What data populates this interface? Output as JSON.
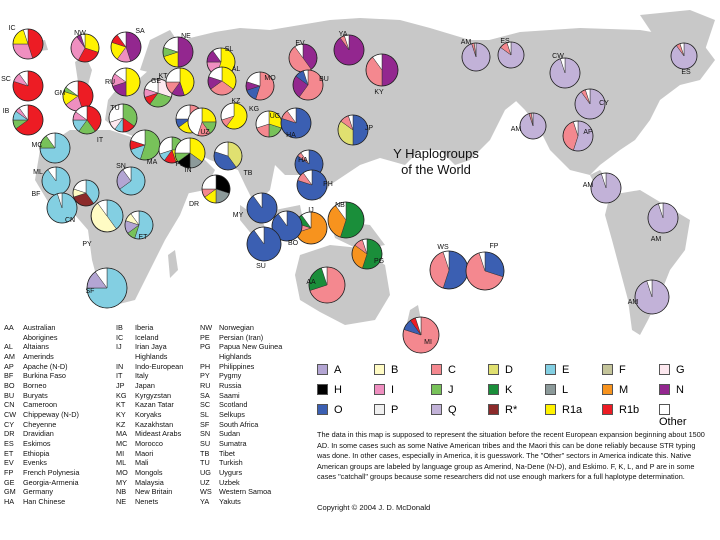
{
  "title_line1": "Y Haplogroups",
  "title_line2": "of the World",
  "colors": {
    "A": "#b3a5d3",
    "B": "#fffbc4",
    "C": "#f4888f",
    "D": "#e0e070",
    "E": "#83cfe2",
    "F": "#c4c49a",
    "G": "#fde8ef",
    "H": "#000000",
    "I": "#ef8fc0",
    "J": "#78c25a",
    "K": "#1a8e3a",
    "L": "#8c9a9a",
    "M": "#f7931e",
    "N": "#93278f",
    "O": "#3b5fb2",
    "P": "#f0f0f0",
    "Q": "#c2b2d8",
    "Rstar": "#8b2a2a",
    "R1a": "#fff200",
    "R1b": "#ed1c24",
    "Other": "#ffffff"
  },
  "legend": [
    {
      "key": "A",
      "label": "A"
    },
    {
      "key": "B",
      "label": "B"
    },
    {
      "key": "C",
      "label": "C"
    },
    {
      "key": "D",
      "label": "D"
    },
    {
      "key": "E",
      "label": "E"
    },
    {
      "key": "F",
      "label": "F"
    },
    {
      "key": "G",
      "label": "G"
    },
    {
      "key": "H",
      "label": "H"
    },
    {
      "key": "I",
      "label": "I"
    },
    {
      "key": "J",
      "label": "J"
    },
    {
      "key": "K",
      "label": "K"
    },
    {
      "key": "L",
      "label": "L"
    },
    {
      "key": "M",
      "label": "M"
    },
    {
      "key": "N",
      "label": "N"
    },
    {
      "key": "O",
      "label": "O"
    },
    {
      "key": "P",
      "label": "P"
    },
    {
      "key": "Q",
      "label": "Q"
    },
    {
      "key": "Rstar",
      "label": "R*"
    },
    {
      "key": "R1a",
      "label": "R1a"
    },
    {
      "key": "R1b",
      "label": "R1b"
    },
    {
      "key": "Other",
      "label": "Other"
    }
  ],
  "populations": [
    {
      "code": "IC",
      "slices": [
        [
          "R1b",
          45
        ],
        [
          "I",
          30
        ],
        [
          "R1a",
          20
        ],
        [
          "Other",
          5
        ]
      ]
    },
    {
      "code": "NW",
      "slices": [
        [
          "R1a",
          30
        ],
        [
          "R1b",
          28
        ],
        [
          "I",
          32
        ],
        [
          "N",
          5
        ],
        [
          "Other",
          5
        ]
      ]
    },
    {
      "code": "SA",
      "slices": [
        [
          "N",
          45
        ],
        [
          "I",
          15
        ],
        [
          "R1a",
          20
        ],
        [
          "R1b",
          10
        ],
        [
          "Other",
          10
        ]
      ]
    },
    {
      "code": "NE",
      "slices": [
        [
          "N",
          50
        ],
        [
          "R1a",
          20
        ],
        [
          "J",
          10
        ],
        [
          "Other",
          20
        ]
      ]
    },
    {
      "code": "SL",
      "slices": [
        [
          "R1a",
          55
        ],
        [
          "I",
          20
        ],
        [
          "N",
          15
        ],
        [
          "Other",
          10
        ]
      ]
    },
    {
      "code": "EV",
      "slices": [
        [
          "N",
          40
        ],
        [
          "C",
          50
        ],
        [
          "Other",
          10
        ]
      ]
    },
    {
      "code": "YA",
      "slices": [
        [
          "N",
          90
        ],
        [
          "C",
          5
        ],
        [
          "Other",
          5
        ]
      ]
    },
    {
      "code": "AM",
      "slices": [
        [
          "Q",
          95
        ],
        [
          "C",
          3
        ],
        [
          "Other",
          2
        ]
      ]
    },
    {
      "code": "ES",
      "slices": [
        [
          "Q",
          85
        ],
        [
          "C",
          10
        ],
        [
          "Other",
          5
        ]
      ]
    },
    {
      "code": "ES",
      "slices": [
        [
          "Q",
          90
        ],
        [
          "C",
          5
        ],
        [
          "Other",
          5
        ]
      ]
    },
    {
      "code": "SC",
      "slices": [
        [
          "R1b",
          80
        ],
        [
          "I",
          10
        ],
        [
          "Other",
          10
        ]
      ]
    },
    {
      "code": "GM",
      "slices": [
        [
          "R1b",
          45
        ],
        [
          "I",
          20
        ],
        [
          "R1a",
          15
        ],
        [
          "J",
          5
        ],
        [
          "Other",
          15
        ]
      ]
    },
    {
      "code": "RU",
      "slices": [
        [
          "R1a",
          50
        ],
        [
          "N",
          20
        ],
        [
          "I",
          15
        ],
        [
          "Other",
          15
        ]
      ]
    },
    {
      "code": "GE",
      "slices": [
        [
          "G",
          30
        ],
        [
          "J",
          30
        ],
        [
          "R1b",
          10
        ],
        [
          "I",
          10
        ],
        [
          "Other",
          20
        ]
      ]
    },
    {
      "code": "KT",
      "slices": [
        [
          "R1a",
          45
        ],
        [
          "N",
          15
        ],
        [
          "C",
          15
        ],
        [
          "Other",
          25
        ]
      ]
    },
    {
      "code": "AL",
      "slices": [
        [
          "R1a",
          35
        ],
        [
          "C",
          30
        ],
        [
          "N",
          15
        ],
        [
          "Other",
          20
        ]
      ]
    },
    {
      "code": "MO",
      "slices": [
        [
          "C",
          55
        ],
        [
          "O",
          15
        ],
        [
          "N",
          10
        ],
        [
          "Other",
          20
        ]
      ]
    },
    {
      "code": "BU",
      "slices": [
        [
          "C",
          60
        ],
        [
          "N",
          25
        ],
        [
          "O",
          10
        ],
        [
          "Other",
          5
        ]
      ]
    },
    {
      "code": "KY",
      "slices": [
        [
          "N",
          50
        ],
        [
          "C",
          40
        ],
        [
          "Other",
          10
        ]
      ]
    },
    {
      "code": "CW",
      "slices": [
        [
          "Q",
          95
        ],
        [
          "Other",
          5
        ]
      ]
    },
    {
      "code": "IB",
      "slices": [
        [
          "R1b",
          65
        ],
        [
          "J",
          10
        ],
        [
          "E",
          10
        ],
        [
          "I",
          5
        ],
        [
          "Other",
          10
        ]
      ]
    },
    {
      "code": "IT",
      "slices": [
        [
          "R1b",
          40
        ],
        [
          "J",
          20
        ],
        [
          "E",
          15
        ],
        [
          "I",
          10
        ],
        [
          "Other",
          15
        ]
      ]
    },
    {
      "code": "TU",
      "slices": [
        [
          "J",
          35
        ],
        [
          "R1b",
          15
        ],
        [
          "E",
          10
        ],
        [
          "G",
          10
        ],
        [
          "Other",
          30
        ]
      ]
    },
    {
      "code": "KZ",
      "slices": [
        [
          "C",
          40
        ],
        [
          "R1a",
          25
        ],
        [
          "O",
          10
        ],
        [
          "Other",
          25
        ]
      ]
    },
    {
      "code": "KG",
      "slices": [
        [
          "R1a",
          60
        ],
        [
          "C",
          10
        ],
        [
          "Other",
          30
        ]
      ]
    },
    {
      "code": "UG",
      "slices": [
        [
          "R1a",
          30
        ],
        [
          "J",
          20
        ],
        [
          "C",
          20
        ],
        [
          "Other",
          30
        ]
      ]
    },
    {
      "code": "JP",
      "slices": [
        [
          "O",
          50
        ],
        [
          "D",
          35
        ],
        [
          "C",
          10
        ],
        [
          "Other",
          5
        ]
      ]
    },
    {
      "code": "CY",
      "slices": [
        [
          "Q",
          90
        ],
        [
          "C",
          5
        ],
        [
          "Other",
          5
        ]
      ]
    },
    {
      "code": "MC",
      "slices": [
        [
          "E",
          75
        ],
        [
          "J",
          15
        ],
        [
          "Other",
          10
        ]
      ]
    },
    {
      "code": "MA",
      "slices": [
        [
          "J",
          55
        ],
        [
          "E",
          15
        ],
        [
          "R1b",
          10
        ],
        [
          "Other",
          20
        ]
      ]
    },
    {
      "code": "PE",
      "slices": [
        [
          "J",
          25
        ],
        [
          "R1a",
          20
        ],
        [
          "R1b",
          15
        ],
        [
          "E",
          10
        ],
        [
          "Other",
          30
        ]
      ]
    },
    {
      "code": "UZ",
      "slices": [
        [
          "R1a",
          25
        ],
        [
          "J",
          15
        ],
        [
          "C",
          15
        ],
        [
          "Other",
          45
        ]
      ]
    },
    {
      "code": "HA",
      "slices": [
        [
          "O",
          80
        ],
        [
          "C",
          10
        ],
        [
          "Other",
          10
        ]
      ]
    },
    {
      "code": "AM",
      "slices": [
        [
          "Q",
          95
        ],
        [
          "C",
          3
        ],
        [
          "Other",
          2
        ]
      ]
    },
    {
      "code": "AP",
      "slices": [
        [
          "Q",
          55
        ],
        [
          "C",
          40
        ],
        [
          "Other",
          5
        ]
      ]
    },
    {
      "code": "SN",
      "slices": [
        [
          "E",
          65
        ],
        [
          "A",
          25
        ],
        [
          "Other",
          10
        ]
      ]
    },
    {
      "code": "IN",
      "slices": [
        [
          "R1a",
          35
        ],
        [
          "L",
          15
        ],
        [
          "H",
          15
        ],
        [
          "J",
          10
        ],
        [
          "Other",
          25
        ]
      ]
    },
    {
      "code": "TB",
      "slices": [
        [
          "D",
          40
        ],
        [
          "O",
          40
        ],
        [
          "Other",
          20
        ]
      ]
    },
    {
      "code": "HA",
      "slices": [
        [
          "O",
          85
        ],
        [
          "C",
          5
        ],
        [
          "Other",
          10
        ]
      ]
    },
    {
      "code": "PH",
      "slices": [
        [
          "O",
          80
        ],
        [
          "C",
          10
        ],
        [
          "Other",
          10
        ]
      ]
    },
    {
      "code": "ML",
      "slices": [
        [
          "E",
          90
        ],
        [
          "Other",
          10
        ]
      ]
    },
    {
      "code": "DR",
      "slices": [
        [
          "H",
          30
        ],
        [
          "L",
          20
        ],
        [
          "R1a",
          15
        ],
        [
          "C",
          10
        ],
        [
          "Other",
          25
        ]
      ]
    },
    {
      "code": "MY",
      "slices": [
        [
          "O",
          90
        ],
        [
          "Other",
          10
        ]
      ]
    },
    {
      "code": "IJ",
      "slices": [
        [
          "M",
          70
        ],
        [
          "C",
          10
        ],
        [
          "K",
          10
        ],
        [
          "Other",
          10
        ]
      ]
    },
    {
      "code": "NB",
      "slices": [
        [
          "K",
          55
        ],
        [
          "M",
          35
        ],
        [
          "Other",
          10
        ]
      ]
    },
    {
      "code": "BF",
      "slices": [
        [
          "E",
          95
        ],
        [
          "Other",
          5
        ]
      ]
    },
    {
      "code": "CN",
      "slices": [
        [
          "E",
          40
        ],
        [
          "Rstar",
          30
        ],
        [
          "B",
          10
        ],
        [
          "Other",
          20
        ]
      ]
    },
    {
      "code": "PY",
      "slices": [
        [
          "E",
          40
        ],
        [
          "B",
          50
        ],
        [
          "Other",
          10
        ]
      ]
    },
    {
      "code": "ET",
      "slices": [
        [
          "E",
          55
        ],
        [
          "J",
          10
        ],
        [
          "A",
          15
        ],
        [
          "B",
          10
        ],
        [
          "Other",
          10
        ]
      ]
    },
    {
      "code": "BO",
      "slices": [
        [
          "O",
          90
        ],
        [
          "Other",
          10
        ]
      ]
    },
    {
      "code": "SU",
      "slices": [
        [
          "O",
          90
        ],
        [
          "Other",
          10
        ]
      ]
    },
    {
      "code": "PG",
      "slices": [
        [
          "K",
          55
        ],
        [
          "M",
          30
        ],
        [
          "C",
          10
        ],
        [
          "Other",
          5
        ]
      ]
    },
    {
      "code": "WS",
      "slices": [
        [
          "O",
          55
        ],
        [
          "C",
          40
        ],
        [
          "Other",
          5
        ]
      ]
    },
    {
      "code": "FP",
      "slices": [
        [
          "O",
          30
        ],
        [
          "C",
          65
        ],
        [
          "Other",
          5
        ]
      ]
    },
    {
      "code": "AM",
      "slices": [
        [
          "Q",
          95
        ],
        [
          "Other",
          5
        ]
      ]
    },
    {
      "code": "AM",
      "slices": [
        [
          "Q",
          95
        ],
        [
          "Other",
          5
        ]
      ]
    },
    {
      "code": "AM",
      "slices": [
        [
          "Q",
          95
        ],
        [
          "Other",
          5
        ]
      ]
    },
    {
      "code": "AA",
      "slices": [
        [
          "C",
          70
        ],
        [
          "K",
          25
        ],
        [
          "Other",
          5
        ]
      ]
    },
    {
      "code": "SF",
      "slices": [
        [
          "E",
          75
        ],
        [
          "A",
          15
        ],
        [
          "Other",
          10
        ]
      ]
    },
    {
      "code": "MI",
      "slices": [
        [
          "C",
          80
        ],
        [
          "O",
          10
        ],
        [
          "R1b",
          5
        ],
        [
          "Other",
          5
        ]
      ]
    }
  ],
  "abbreviations": [
    [
      [
        "AA",
        "Australian"
      ],
      [
        "",
        "Aborigines"
      ],
      [
        "AL",
        "Altaians"
      ],
      [
        "AM",
        "Amerinds"
      ],
      [
        "AP",
        "Apache (N-D)"
      ],
      [
        "BF",
        "Burkina Faso"
      ],
      [
        "BO",
        "Borneo"
      ],
      [
        "BU",
        "Buryats"
      ],
      [
        "CN",
        "Cameroon"
      ],
      [
        "CW",
        "Chippeway (N-D)"
      ],
      [
        "CY",
        "Cheyenne"
      ],
      [
        "DR",
        "Dravidian"
      ],
      [
        "ES",
        "Eskimos"
      ],
      [
        "ET",
        "Ethiopia"
      ],
      [
        "EV",
        "Evenks"
      ],
      [
        "FP",
        "French Polynesia"
      ],
      [
        "GE",
        "Georgia-Armenia"
      ],
      [
        "GM",
        "Germany"
      ],
      [
        "HA",
        "Han Chinese"
      ]
    ],
    [
      [
        "IB",
        "Iberia"
      ],
      [
        "IC",
        "Iceland"
      ],
      [
        "IJ",
        "Irian Jaya"
      ],
      [
        "",
        "Highlands"
      ],
      [
        "IN",
        "Indo-European"
      ],
      [
        "IT",
        "Italy"
      ],
      [
        "JP",
        "Japan"
      ],
      [
        "KG",
        "Kyrgyzstan"
      ],
      [
        "KT",
        "Kazan Tatar"
      ],
      [
        "KY",
        "Koryaks"
      ],
      [
        "KZ",
        "Kazakhstan"
      ],
      [
        "MA",
        "Mideast Arabs"
      ],
      [
        "MC",
        "Morocco"
      ],
      [
        "MI",
        "Maori"
      ],
      [
        "ML",
        "Mali"
      ],
      [
        "MO",
        "Mongols"
      ],
      [
        "MY",
        "Malaysia"
      ],
      [
        "NB",
        "New Britain"
      ],
      [
        "NE",
        "Nenets"
      ]
    ],
    [
      [
        "NW",
        "Norwegian"
      ],
      [
        "PE",
        "Persian (Iran)"
      ],
      [
        "PG",
        "Papua New Guinea"
      ],
      [
        "",
        "Highlands"
      ],
      [
        "PH",
        "Philippines"
      ],
      [
        "PY",
        "Pygmy"
      ],
      [
        "RU",
        "Russia"
      ],
      [
        "SA",
        "Saami"
      ],
      [
        "SC",
        "Scotland"
      ],
      [
        "SL",
        "Selkups"
      ],
      [
        "SF",
        "South Africa"
      ],
      [
        "SN",
        "Sudan"
      ],
      [
        "SU",
        "Sumatra"
      ],
      [
        "TB",
        "Tibet"
      ],
      [
        "TU",
        "Turkish"
      ],
      [
        "UG",
        "Uygurs"
      ],
      [
        "UZ",
        "Uzbek"
      ],
      [
        "WS",
        "Western Samoa"
      ],
      [
        "YA",
        "Yakuts"
      ]
    ]
  ],
  "note": "The data in this map is supposed to represent the situation before the recent European expansion beginning about 1500 AD. In some cases such as some Native American tribes and the Maori this can be done reliably because STR typing was done. In other cases, especially in America, it is guesswork. The \"Other\" sectors in America indicate this. Native American groups are labeled by language group as Amerind, Na-Dene (N-D), and Eskimo.  F, K, L, and P are in some cases \"catchall\" groups because some researchers did not use enough markers for a full haplotype determination.",
  "copyright": "Copyright © 2004 J. D. McDonald"
}
